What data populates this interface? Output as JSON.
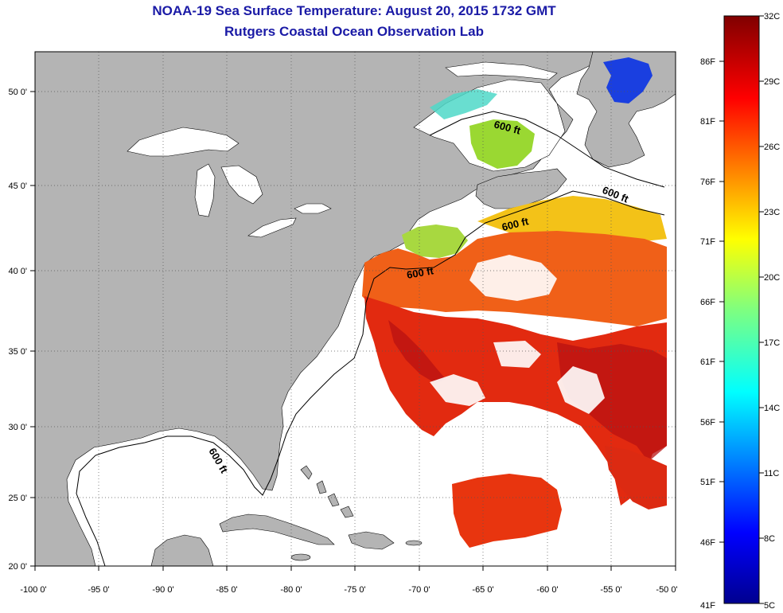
{
  "title": {
    "line1": "NOAA-19 Sea Surface Temperature:  August 20, 2015 1732 GMT",
    "line2": "Rutgers Coastal Ocean Observation Lab"
  },
  "map": {
    "lon_labels": [
      "-100 0'",
      "-95 0'",
      "-90 0'",
      "-85 0'",
      "-80 0'",
      "-75 0'",
      "-70 0'",
      "-65 0'",
      "-60 0'",
      "-55 0'",
      "-50 0'"
    ],
    "lat_labels": [
      "50 0'",
      "45 0'",
      "40 0'",
      "35 0'",
      "30 0'",
      "25 0'",
      "20 0'"
    ],
    "isobath_labels": [
      "600 ft",
      "600 ft",
      "600 ft",
      "600 ft",
      "600 ft"
    ],
    "colors": {
      "land": "#b4b4b4",
      "ocean": "#ffffff",
      "title": "#1a1aa6"
    }
  },
  "colorbar": {
    "celsius_labels": [
      "32C",
      "29C",
      "26C",
      "23C",
      "20C",
      "17C",
      "14C",
      "11C",
      "8C",
      "5C"
    ],
    "fahrenheit_labels": [
      "86F",
      "81F",
      "76F",
      "71F",
      "66F",
      "61F",
      "56F",
      "51F",
      "46F",
      "41F"
    ]
  }
}
